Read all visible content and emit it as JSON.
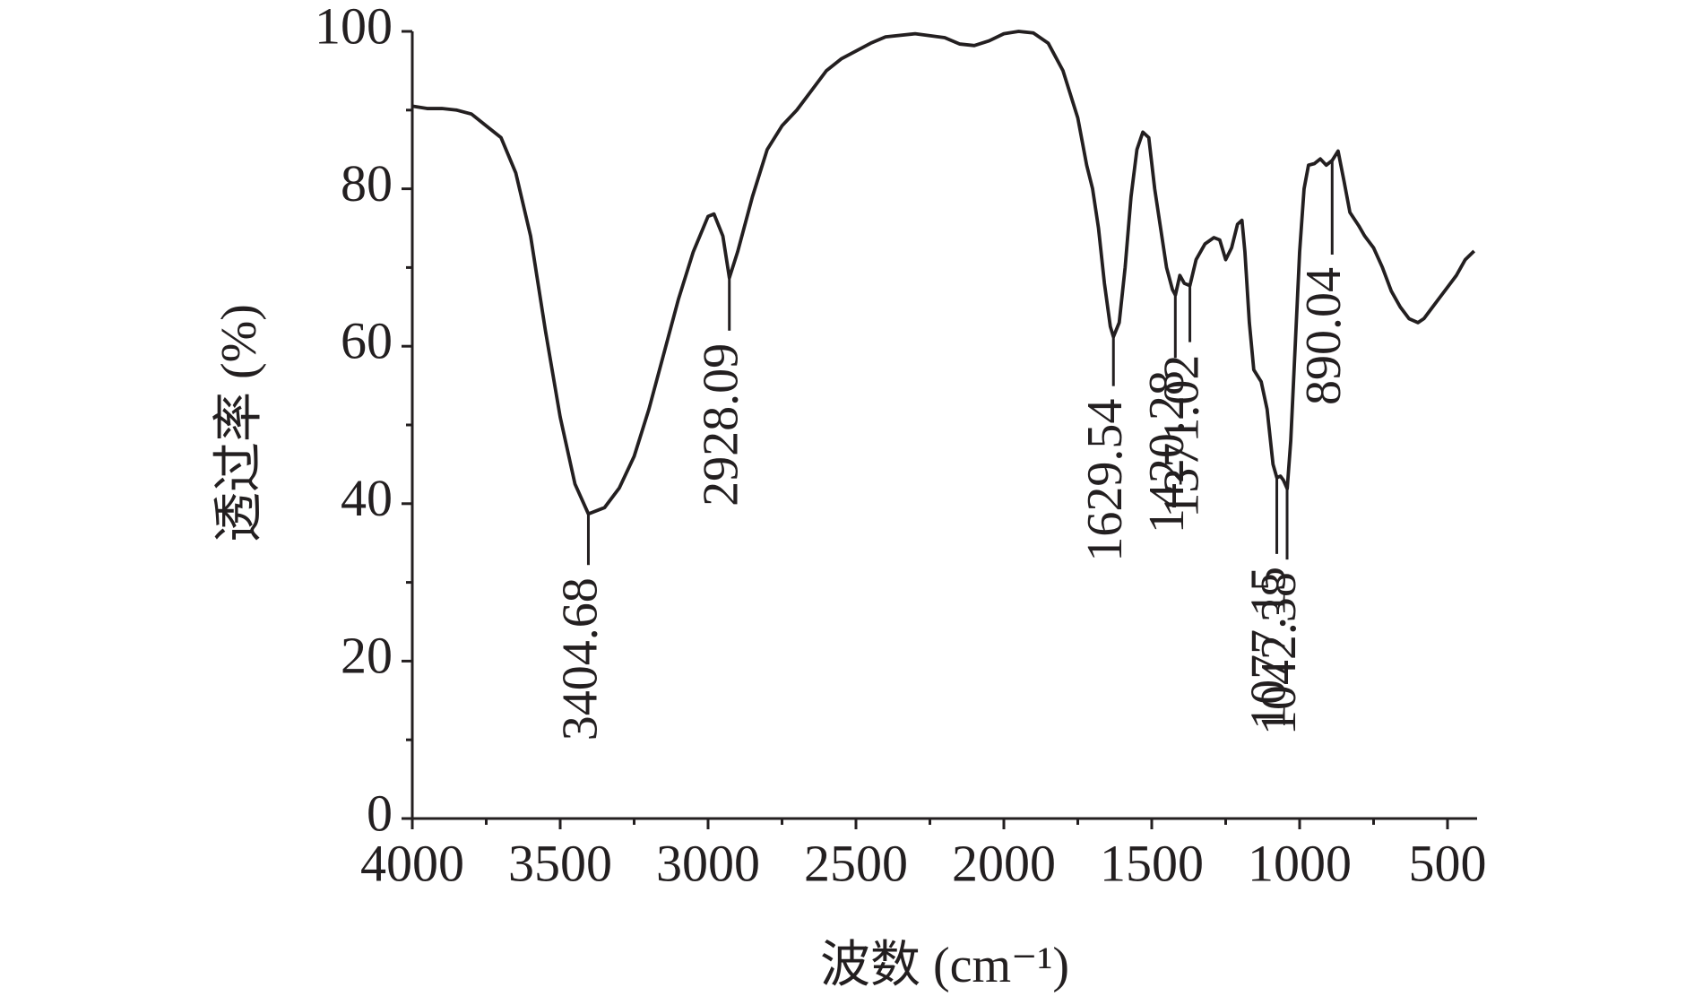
{
  "chart_data": {
    "type": "line",
    "x_label": "波数 (cm⁻¹)",
    "y_label": "透过率 (%)",
    "xlim": [
      4000,
      400
    ],
    "ylim": [
      0,
      100
    ],
    "xticks": [
      4000,
      3500,
      3000,
      2500,
      2000,
      1500,
      1000,
      500
    ],
    "xminorticks": [
      3750,
      3250,
      2750,
      2250,
      1750,
      1250,
      750
    ],
    "yticks": [
      0,
      20,
      40,
      60,
      80,
      100
    ],
    "yminorticks": [
      10,
      30,
      50,
      70,
      90
    ],
    "x": [
      4000,
      3950,
      3900,
      3850,
      3800,
      3750,
      3700,
      3650,
      3600,
      3550,
      3500,
      3450,
      3404.68,
      3350,
      3300,
      3250,
      3200,
      3150,
      3100,
      3050,
      3000,
      2980,
      2950,
      2928,
      2900,
      2850,
      2800,
      2750,
      2700,
      2650,
      2600,
      2550,
      2500,
      2450,
      2400,
      2300,
      2200,
      2150,
      2100,
      2050,
      2000,
      1950,
      1900,
      1850,
      1800,
      1750,
      1720,
      1700,
      1680,
      1660,
      1640,
      1629.54,
      1610,
      1590,
      1570,
      1550,
      1530,
      1510,
      1490,
      1470,
      1450,
      1430,
      1420,
      1405,
      1390,
      1371,
      1350,
      1320,
      1290,
      1270,
      1250,
      1230,
      1210,
      1195,
      1185,
      1170,
      1155,
      1130,
      1110,
      1090,
      1077,
      1065,
      1055,
      1042,
      1030,
      1015,
      1000,
      985,
      970,
      950,
      930,
      910,
      890,
      870,
      850,
      830,
      800,
      780,
      750,
      720,
      690,
      660,
      630,
      600,
      580,
      560,
      530,
      500,
      470,
      440,
      410
    ],
    "series": [
      {
        "color": "#231f20",
        "values": [
          90.5,
          90.2,
          90.2,
          90.0,
          89.5,
          88.0,
          86.5,
          82,
          74,
          62,
          51,
          42.5,
          38.7,
          39.5,
          42,
          46,
          52,
          59,
          66,
          72,
          76.5,
          76.8,
          74,
          68.7,
          72,
          79,
          85,
          88,
          90,
          92.5,
          95,
          96.5,
          97.5,
          98.5,
          99.3,
          99.7,
          99.2,
          98.4,
          98.2,
          98.8,
          99.7,
          100,
          99.8,
          98.5,
          95,
          89,
          83,
          80,
          75,
          68,
          62.5,
          61.2,
          63,
          70,
          79,
          85,
          87.2,
          86.5,
          80,
          75,
          70,
          67.2,
          66.5,
          69,
          68,
          67.7,
          71,
          73,
          73.8,
          73.5,
          71,
          72.5,
          75.5,
          76,
          72,
          63,
          57,
          55.5,
          52,
          45,
          43.3,
          43.5,
          43,
          41.9,
          48,
          60,
          72,
          80,
          83,
          83.2,
          83.8,
          83,
          83.6,
          84.8,
          81,
          77,
          75.3,
          74,
          72.5,
          70,
          67,
          65,
          63.5,
          63,
          63.5,
          64.5,
          66,
          67.5,
          69,
          71,
          72.1
        ]
      }
    ],
    "peaks": [
      {
        "x": 3404.68,
        "y": 38.7
      },
      {
        "x": 2928.09,
        "y": 68.7
      },
      {
        "x": 1629.54,
        "y": 61.2
      },
      {
        "x": 1420.28,
        "y": 66.5
      },
      {
        "x": 1371.02,
        "y": 67.7
      },
      {
        "x": 1077.15,
        "y": 43.3
      },
      {
        "x": 1042.38,
        "y": 41.9
      },
      {
        "x": 890.04,
        "y": 83.6
      }
    ]
  }
}
